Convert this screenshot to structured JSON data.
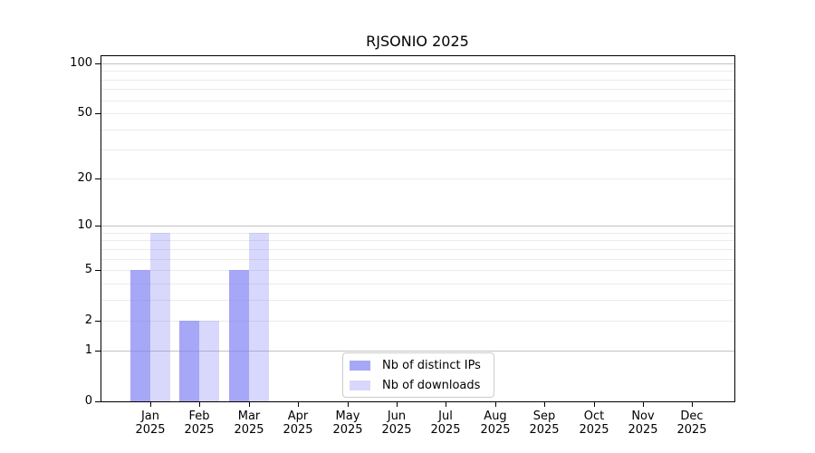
{
  "chart_data": {
    "type": "bar",
    "title": "RJSONIO 2025",
    "categories": [
      "Jan",
      "Feb",
      "Mar",
      "Apr",
      "May",
      "Jun",
      "Jul",
      "Aug",
      "Sep",
      "Oct",
      "Nov",
      "Dec"
    ],
    "category_year": "2025",
    "series": [
      {
        "name": "Nb of distinct IPs",
        "color": "#8080f4",
        "alpha": 0.69,
        "values": [
          5,
          2,
          5,
          0,
          0,
          0,
          0,
          0,
          0,
          0,
          0,
          0
        ]
      },
      {
        "name": "Nb of downloads",
        "color": "#8080f4",
        "alpha": 0.31,
        "values": [
          9,
          2,
          9,
          0,
          0,
          0,
          0,
          0,
          0,
          0,
          0,
          0
        ]
      }
    ],
    "yscale": "log1p",
    "ylim": [
      0,
      112
    ],
    "y_tick_values": [
      0,
      1,
      2,
      5,
      10,
      20,
      50,
      100
    ],
    "grid": "horizontal",
    "grid_major_at": [
      1,
      10,
      100
    ],
    "legend": {
      "position": "inside-bottom-center",
      "labels": [
        "Nb of distinct IPs",
        "Nb of downloads"
      ]
    }
  }
}
